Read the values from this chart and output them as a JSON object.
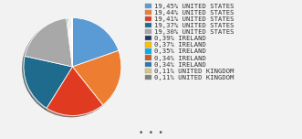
{
  "slices": [
    {
      "label": "19,45% UNITED STATES",
      "value": 19.45,
      "color": "#5b9bd5"
    },
    {
      "label": "19,44% UNITED STATES",
      "value": 19.44,
      "color": "#ed7d31"
    },
    {
      "label": "19,41% UNITED STATES",
      "value": 19.41,
      "color": "#e03b20"
    },
    {
      "label": "19,37% UNITED STATES",
      "value": 19.37,
      "color": "#1f6b8e"
    },
    {
      "label": "19,30% UNITED STATES",
      "value": 19.3,
      "color": "#a8a8a8"
    },
    {
      "label": "0,39% IRELAND",
      "value": 0.39,
      "color": "#1f3864"
    },
    {
      "label": "0,37% IRELAND",
      "value": 0.37,
      "color": "#ffc000"
    },
    {
      "label": "0,35% IRELAND",
      "value": 0.35,
      "color": "#00b0f0"
    },
    {
      "label": "0,34% IRELAND",
      "value": 0.34,
      "color": "#bf6030"
    },
    {
      "label": "0,34% IRELAND",
      "value": 0.34,
      "color": "#2e75b6"
    },
    {
      "label": "0,11% UNITED KINGDOM",
      "value": 0.11,
      "color": "#d6c87a"
    },
    {
      "label": "0,11% UNITED KINGDOM",
      "value": 0.11,
      "color": "#7f7f7f"
    }
  ],
  "background_color": "#f2f2f2",
  "legend_fontsize": 5.2,
  "dots": "• • •"
}
